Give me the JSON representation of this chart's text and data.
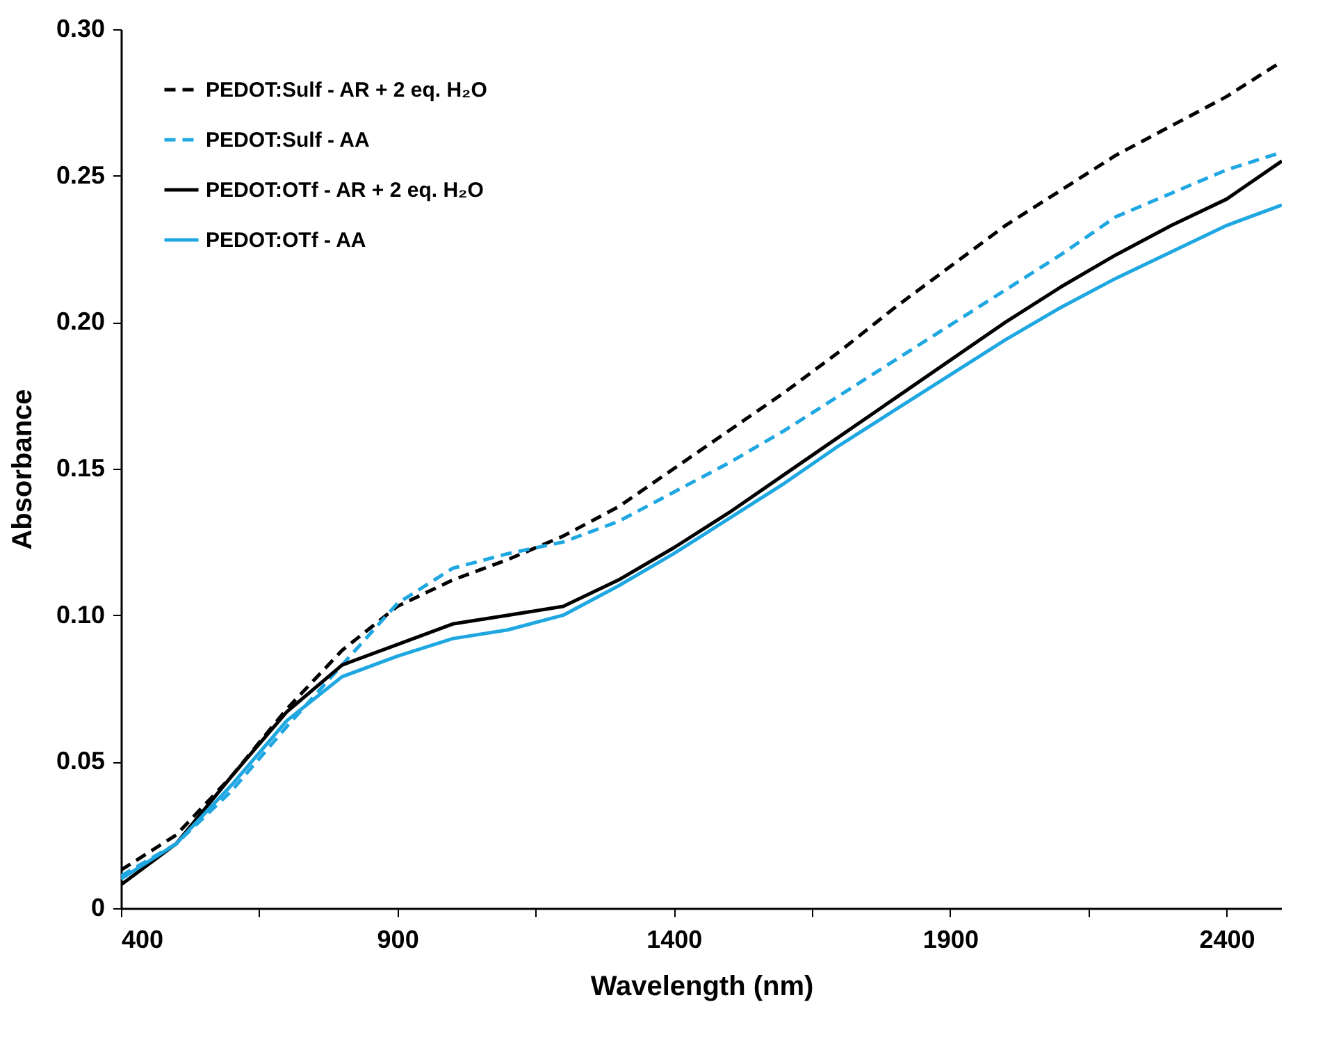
{
  "chart_data": {
    "type": "line",
    "xlabel": "Wavelength (nm)",
    "ylabel": "Absorbance",
    "x": [
      400,
      500,
      600,
      700,
      800,
      900,
      1000,
      1100,
      1200,
      1300,
      1400,
      1500,
      1600,
      1700,
      1800,
      1900,
      2000,
      2100,
      2200,
      2300,
      2400,
      2500
    ],
    "xlim": [
      400,
      2500
    ],
    "xticks": [
      400,
      {
        "value": 650,
        "label": null
      },
      900,
      {
        "value": 1150,
        "label": null
      },
      1400,
      {
        "value": 1650,
        "label": null
      },
      1900,
      {
        "value": 2150,
        "label": null
      },
      2400
    ],
    "ylim": [
      0,
      0.3
    ],
    "yticks": [
      0,
      0.05,
      {
        "value": 0.1,
        "label": "0.10"
      },
      0.15,
      {
        "value": 0.2,
        "label": "0.20"
      },
      0.25,
      {
        "value": 0.3,
        "label": "0.30"
      }
    ],
    "grid": false,
    "legend": "top left",
    "marker": "none",
    "series": [
      {
        "name": "PEDOT:Sulf - AR + 2 eq. H₂O",
        "color": "#000000",
        "line_style": "dashed",
        "values": [
          0.013,
          0.025,
          0.045,
          0.068,
          0.088,
          0.103,
          0.112,
          0.119,
          0.127,
          0.137,
          0.15,
          0.163,
          0.176,
          0.19,
          0.205,
          0.219,
          0.233,
          0.245,
          0.257,
          0.267,
          0.277,
          0.289
        ]
      },
      {
        "name": "PEDOT:Sulf - AA",
        "color": "#1ea7e1",
        "line_style": "dashed",
        "values": [
          0.011,
          0.022,
          0.04,
          0.062,
          0.083,
          0.104,
          0.116,
          0.121,
          0.125,
          0.132,
          0.142,
          0.152,
          0.163,
          0.175,
          0.187,
          0.199,
          0.211,
          0.223,
          0.236,
          0.244,
          0.252,
          0.258
        ]
      },
      {
        "name": "PEDOT:OTf - AR + 2 eq. H₂O",
        "color": "#000000",
        "line_style": "solid",
        "values": [
          0.008,
          0.022,
          0.045,
          0.067,
          0.083,
          0.09,
          0.097,
          0.1,
          0.103,
          0.112,
          0.123,
          0.135,
          0.148,
          0.161,
          0.174,
          0.187,
          0.2,
          0.212,
          0.223,
          0.233,
          0.242,
          0.255
        ]
      },
      {
        "name": "PEDOT:OTf - AA",
        "color": "#1ea7e1",
        "line_style": "solid",
        "values": [
          0.01,
          0.022,
          0.042,
          0.064,
          0.079,
          0.086,
          0.092,
          0.095,
          0.1,
          0.11,
          0.121,
          0.133,
          0.145,
          0.158,
          0.17,
          0.182,
          0.194,
          0.205,
          0.215,
          0.224,
          0.233,
          0.24
        ]
      }
    ]
  }
}
